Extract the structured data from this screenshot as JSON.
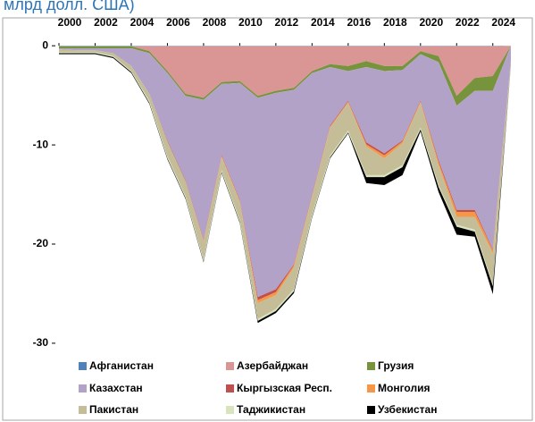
{
  "chart_data": {
    "type": "stacked_area",
    "subtitle": "млрд долл. США)",
    "x": [
      2000,
      2001,
      2002,
      2003,
      2004,
      2005,
      2006,
      2007,
      2008,
      2009,
      2010,
      2011,
      2012,
      2013,
      2014,
      2015,
      2016,
      2017,
      2018,
      2019,
      2020,
      2021,
      2022,
      2023,
      2024,
      2025
    ],
    "xlim": [
      2000,
      2025
    ],
    "xticks": [
      2000,
      2002,
      2004,
      2006,
      2008,
      2010,
      2012,
      2014,
      2016,
      2018,
      2020,
      2022,
      2024
    ],
    "ylim": [
      -31,
      2
    ],
    "yticks": [
      0,
      -10,
      -20,
      -30
    ],
    "legend": "bottom",
    "series": [
      {
        "name": "Афганистан",
        "color": "#4f81bd",
        "values": [
          -0.05,
          -0.05,
          -0.05,
          -0.05,
          -0.05,
          -0.05,
          -0.05,
          -0.05,
          -0.05,
          -0.05,
          -0.05,
          -0.05,
          -0.05,
          -0.05,
          -0.05,
          -0.05,
          -0.05,
          -0.05,
          -0.05,
          -0.05,
          -0.05,
          -0.05,
          -0.05,
          -0.05,
          -0.05,
          0
        ]
      },
      {
        "name": "Азербайджан",
        "color": "#d99694",
        "values": [
          0,
          0,
          0,
          0,
          0,
          -0.5,
          -2.5,
          -4.8,
          -5.2,
          -3.6,
          -3.5,
          -5,
          -4.5,
          -4.2,
          -2.5,
          -1.8,
          -2,
          -1.5,
          -2,
          -2,
          -0.5,
          -1,
          -5,
          -3.2,
          -3,
          0
        ]
      },
      {
        "name": "Грузия",
        "color": "#77933c",
        "values": [
          -0.2,
          -0.2,
          -0.2,
          -0.2,
          -0.2,
          -0.2,
          -0.2,
          -0.2,
          -0.2,
          -0.2,
          -0.2,
          -0.2,
          -0.2,
          -0.2,
          -0.2,
          -0.3,
          -0.5,
          -0.6,
          -0.5,
          -0.4,
          -0.3,
          -0.6,
          -1,
          -1.3,
          -1.5,
          0
        ]
      },
      {
        "name": "Казахстан",
        "color": "#b3a2c7",
        "values": [
          -0.1,
          -0.2,
          -0.2,
          -0.5,
          -1.8,
          -4.1,
          -6.8,
          -8.5,
          -14.1,
          -7.2,
          -11.8,
          -20.1,
          -19.8,
          -17.6,
          -12.3,
          -5.9,
          -3,
          -7.6,
          -8.3,
          -7.1,
          -4.7,
          -9.9,
          -10.5,
          -12,
          -16,
          -1.5
        ]
      },
      {
        "name": "Кыргызская Респ.",
        "color": "#c0504d",
        "values": [
          0,
          0,
          0,
          0,
          0,
          0,
          -0.1,
          -0.1,
          -0.1,
          -0.1,
          -0.1,
          -0.3,
          -0.3,
          -0.1,
          -0.1,
          -0.1,
          -0.1,
          -0.2,
          -0.2,
          -0.1,
          -0.1,
          -0.2,
          -0.2,
          -0.2,
          -0.1,
          0
        ]
      },
      {
        "name": "Монголия",
        "color": "#f79646",
        "values": [
          0,
          0,
          0,
          0,
          0,
          0,
          0,
          0,
          -0.1,
          -0.1,
          -0.1,
          -0.3,
          -0.3,
          -0.2,
          -0.1,
          -0.1,
          -0.1,
          -0.2,
          -0.3,
          -0.2,
          -0.1,
          -0.3,
          -0.5,
          -0.5,
          -0.3,
          0
        ]
      },
      {
        "name": "Пакистан",
        "color": "#c4bd97",
        "values": [
          -0.3,
          -0.2,
          -0.2,
          -0.3,
          -0.5,
          -0.7,
          -1.5,
          -1.5,
          -1.8,
          -1.3,
          -1.8,
          -1.6,
          -1.4,
          -2.2,
          -1.8,
          -2.8,
          -2.8,
          -2.9,
          -1.7,
          -2.2,
          -2.5,
          -2,
          -0.8,
          -1.3,
          -3.1,
          -0.5
        ]
      },
      {
        "name": "Таджикистан",
        "color": "#d7e4bd",
        "values": [
          -0.1,
          -0.1,
          -0.1,
          -0.1,
          -0.1,
          -0.2,
          -0.2,
          -0.2,
          -0.2,
          -0.2,
          -0.2,
          -0.2,
          -0.2,
          -0.2,
          -0.2,
          -0.2,
          -0.2,
          -0.2,
          -0.2,
          -0.2,
          -0.2,
          -0.2,
          -0.2,
          -0.2,
          -0.2,
          0
        ]
      },
      {
        "name": "Узбекистан",
        "color": "#000000",
        "values": [
          -0.1,
          -0.1,
          -0.1,
          -0.1,
          -0.1,
          -0.1,
          -0.1,
          -0.1,
          -0.1,
          -0.1,
          -0.1,
          -0.2,
          -0.2,
          -0.2,
          -0.1,
          -0.1,
          -0.1,
          -0.6,
          -0.8,
          -0.8,
          -0.2,
          -0.5,
          -0.8,
          -0.5,
          -0.8,
          0
        ]
      }
    ]
  }
}
